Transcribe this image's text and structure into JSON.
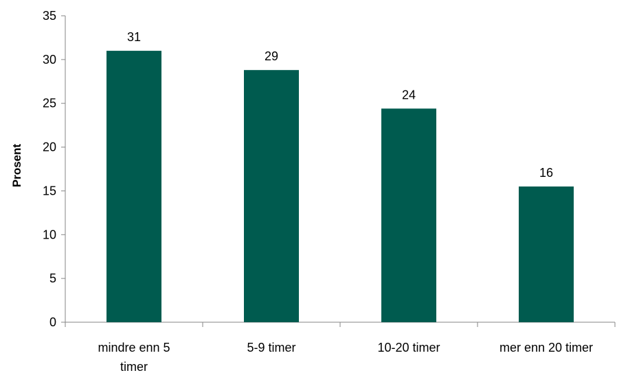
{
  "chart_data": {
    "type": "bar",
    "categories": [
      "mindre enn 5 timer",
      "5-9 timer",
      "10-20 timer",
      "mer enn 20 timer"
    ],
    "values": [
      31,
      29,
      24,
      16
    ],
    "bar_heights": [
      31,
      28.8,
      24.4,
      15.5
    ],
    "data_labels": [
      "31",
      "29",
      "24",
      "16"
    ],
    "title": "",
    "xlabel": "",
    "ylabel": "Prosent",
    "ylim": [
      0,
      35
    ],
    "yticks": [
      0,
      5,
      10,
      15,
      20,
      25,
      30,
      35
    ],
    "grid": false,
    "legend": "none",
    "bar_color": "#005B4F"
  }
}
